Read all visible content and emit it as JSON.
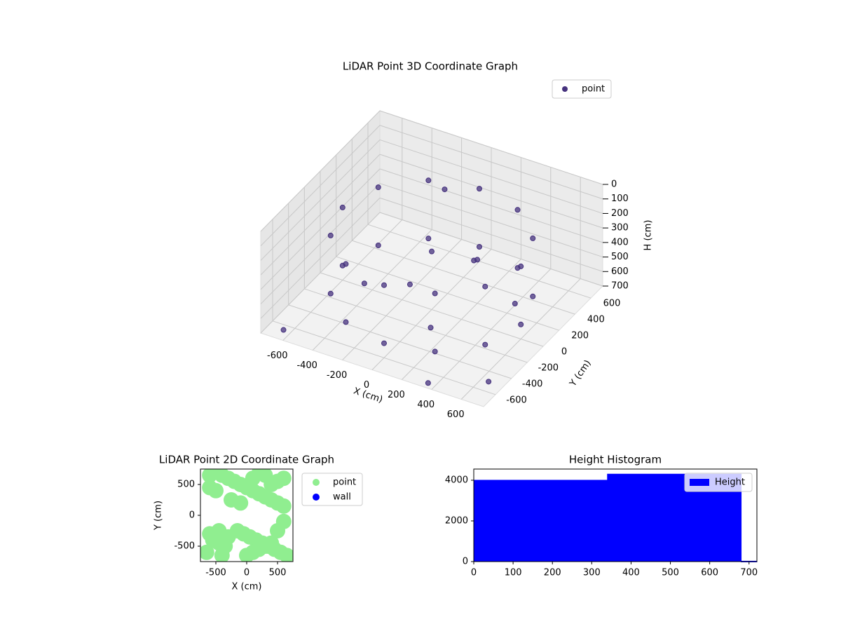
{
  "chart_data": [
    {
      "type": "scatter3d",
      "title": "LiDAR Point 3D Coordinate Graph",
      "xlabel": "X (cm)",
      "ylabel": "Y (cm)",
      "zlabel": "H (cm)",
      "xlim": [
        -750,
        750
      ],
      "ylim": [
        -750,
        750
      ],
      "zlim": [
        700,
        0
      ],
      "xticks": [
        -600,
        -400,
        -200,
        0,
        200,
        400,
        600
      ],
      "yticks": [
        -600,
        -400,
        -200,
        0,
        200,
        400,
        600
      ],
      "zticks": [
        0,
        100,
        200,
        300,
        400,
        500,
        600,
        700
      ],
      "grid": true,
      "legend": "upper right",
      "series": [
        {
          "name": "point",
          "color": "#46327e",
          "x": [
            600,
            520,
            300,
            0,
            -300,
            -520,
            -600,
            -520,
            -300,
            0,
            300,
            520,
            600,
            520,
            300,
            0,
            -300,
            -520,
            -600,
            -520,
            -300,
            0,
            300,
            520,
            -200,
            100,
            400,
            -400,
            200,
            0,
            -100,
            150,
            -650,
            650,
            350
          ],
          "y": [
            0,
            300,
            520,
            600,
            520,
            300,
            0,
            -300,
            -520,
            -600,
            -520,
            -300,
            0,
            300,
            520,
            600,
            520,
            300,
            0,
            -300,
            -520,
            -600,
            -520,
            -300,
            100,
            -200,
            300,
            -100,
            200,
            0,
            350,
            250,
            -650,
            -500,
            -700
          ],
          "z": [
            200,
            200,
            200,
            200,
            200,
            200,
            200,
            200,
            200,
            200,
            200,
            200,
            600,
            600,
            600,
            600,
            600,
            600,
            600,
            600,
            600,
            600,
            600,
            600,
            650,
            680,
            690,
            600,
            400,
            300,
            100,
            450,
            700,
            700,
            700
          ]
        }
      ]
    },
    {
      "type": "scatter",
      "title": "LiDAR Point 2D Coordinate Graph",
      "xlabel": "X (cm)",
      "ylabel": "Y (cm)",
      "xlim": [
        -750,
        750
      ],
      "ylim": [
        -750,
        750
      ],
      "xticks": [
        -500,
        0,
        500
      ],
      "yticks": [
        -500,
        0,
        500
      ],
      "legend": "outside right",
      "series": [
        {
          "name": "point",
          "color": "#90ee90",
          "x": [
            -600,
            -500,
            -400,
            -300,
            -200,
            -100,
            0,
            100,
            200,
            300,
            400,
            500,
            600,
            -550,
            -450,
            -350,
            -650,
            650,
            550,
            450,
            350,
            250,
            150,
            50,
            -50,
            -150,
            600,
            500,
            400,
            300,
            200,
            100,
            -600,
            -500,
            -400,
            -300,
            0,
            100,
            200,
            300,
            400,
            500,
            600,
            -600,
            -450,
            -250,
            -100
          ],
          "y": [
            650,
            700,
            650,
            600,
            550,
            500,
            450,
            400,
            350,
            300,
            250,
            200,
            150,
            -400,
            -450,
            -500,
            -600,
            -650,
            -600,
            -550,
            -500,
            -450,
            -400,
            -350,
            -300,
            -250,
            600,
            550,
            500,
            650,
            680,
            600,
            450,
            400,
            -650,
            -350,
            -650,
            -600,
            -550,
            -500,
            -450,
            -250,
            -100,
            -300,
            -250,
            250,
            200
          ]
        },
        {
          "name": "wall",
          "color": "#0000ff",
          "x": [],
          "y": []
        }
      ]
    },
    {
      "type": "histogram",
      "title": "Height Histogram",
      "bins": [
        0,
        340,
        680,
        720
      ],
      "series": [
        {
          "name": "Height",
          "color": "#0000ff",
          "values": [
            4000,
            4300,
            20
          ]
        }
      ],
      "xlim": [
        0,
        720
      ],
      "ylim": [
        0,
        4550
      ],
      "xticks": [
        0,
        100,
        200,
        300,
        400,
        500,
        600,
        700
      ],
      "yticks": [
        0,
        2000,
        4000
      ],
      "legend": "upper right"
    }
  ]
}
